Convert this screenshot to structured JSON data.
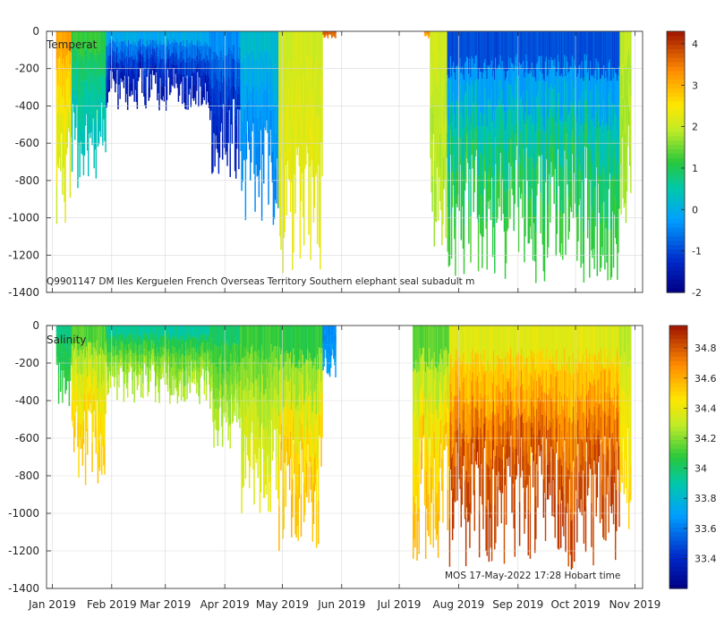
{
  "chart_data": [
    {
      "type": "heatmap",
      "name": "temperature",
      "panel_label": "Temperat",
      "annotation": "Q9901147 DM Iles Kerguelen French Overseas Territory Southern elephant seal subadult m",
      "xlabel": "",
      "ylabel": "",
      "ylim": [
        -1400,
        0
      ],
      "y_ticks": [
        0,
        -200,
        -400,
        -600,
        -800,
        -1000,
        -1200,
        -1400
      ],
      "y_tick_labels": [
        "0",
        "-200",
        "-400",
        "-600",
        "-800",
        "-1000",
        "-1200",
        "-1400"
      ],
      "x_range_days": [
        -3,
        308
      ],
      "x_ticks_days": [
        0,
        31,
        59,
        90,
        120,
        151,
        181,
        212,
        243,
        273,
        304
      ],
      "colorbar": {
        "range": [
          -2,
          4.3
        ],
        "ticks": [
          -2,
          -1,
          0,
          1,
          2,
          3,
          4
        ],
        "tick_labels": [
          "-2",
          "-1",
          "0",
          "1",
          "2",
          "3",
          "4"
        ]
      },
      "grid": true,
      "segments": [
        {
          "start_day": 2,
          "end_day": 10,
          "surface_value": 3.5,
          "deep_value": 2.0,
          "max_depth": 1100
        },
        {
          "start_day": 10,
          "end_day": 28,
          "surface_value": 1.5,
          "deep_value": 0.3,
          "max_depth": 850
        },
        {
          "start_day": 28,
          "end_day": 82,
          "surface_value": 0.5,
          "deep_value": -1.7,
          "max_depth": 430
        },
        {
          "start_day": 82,
          "end_day": 98,
          "surface_value": 0.0,
          "deep_value": -1.5,
          "max_depth": 800
        },
        {
          "start_day": 98,
          "end_day": 118,
          "surface_value": 0.5,
          "deep_value": -0.5,
          "max_depth": 1050
        },
        {
          "start_day": 118,
          "end_day": 141,
          "surface_value": 2.0,
          "deep_value": 2.3,
          "max_depth": 1300
        },
        {
          "start_day": 141,
          "end_day": 148,
          "surface_value": 4.0,
          "deep_value": 3.5,
          "max_depth": 40
        },
        {
          "start_day": 194,
          "end_day": 197,
          "surface_value": 3.5,
          "deep_value": 3.0,
          "max_depth": 40
        },
        {
          "start_day": 197,
          "end_day": 206,
          "surface_value": 2.2,
          "deep_value": 1.8,
          "max_depth": 1200
        },
        {
          "start_day": 206,
          "end_day": 296,
          "surface_value": -1.7,
          "deep_value": 1.4,
          "max_depth": 1350
        },
        {
          "start_day": 296,
          "end_day": 302,
          "surface_value": 2.0,
          "deep_value": 1.8,
          "max_depth": 1100
        }
      ]
    },
    {
      "type": "heatmap",
      "name": "salinity",
      "panel_label": "Salinity",
      "annotation": "MOS 17-May-2022 17:28 Hobart time",
      "xlabel": "",
      "ylabel": "",
      "ylim": [
        -1400,
        0
      ],
      "y_ticks": [
        0,
        -200,
        -400,
        -600,
        -800,
        -1000,
        -1200,
        -1400
      ],
      "y_tick_labels": [
        "0",
        "-200",
        "-400",
        "-600",
        "-800",
        "-1000",
        "-1200",
        "-1400"
      ],
      "x_range_days": [
        -3,
        308
      ],
      "x_ticks_days": [
        0,
        31,
        59,
        90,
        120,
        151,
        181,
        212,
        243,
        273,
        304
      ],
      "x_tick_labels": [
        "Jan 2019",
        "Feb 2019",
        "Mar 2019",
        "Apr 2019",
        "May 2019",
        "Jun 2019",
        "Jul 2019",
        "Aug 2019",
        "Sep 2019",
        "Oct 2019",
        "Nov 2019"
      ],
      "colorbar": {
        "range": [
          33.2,
          34.95
        ],
        "ticks": [
          33.4,
          33.6,
          33.8,
          34.0,
          34.2,
          34.4,
          34.6,
          34.8
        ],
        "tick_labels": [
          "33.4",
          "33.6",
          "33.8",
          "34",
          "34.2",
          "34.4",
          "34.6",
          "34.8"
        ]
      },
      "grid": true,
      "segments": [
        {
          "start_day": 2,
          "end_day": 10,
          "surface_value": 33.9,
          "deep_value": 34.1,
          "max_depth": 430
        },
        {
          "start_day": 10,
          "end_day": 28,
          "surface_value": 34.0,
          "deep_value": 34.55,
          "max_depth": 850
        },
        {
          "start_day": 28,
          "end_day": 82,
          "surface_value": 33.8,
          "deep_value": 34.3,
          "max_depth": 420
        },
        {
          "start_day": 82,
          "end_day": 98,
          "surface_value": 33.9,
          "deep_value": 34.3,
          "max_depth": 660
        },
        {
          "start_day": 98,
          "end_day": 118,
          "surface_value": 34.0,
          "deep_value": 34.4,
          "max_depth": 1050
        },
        {
          "start_day": 118,
          "end_day": 141,
          "surface_value": 33.9,
          "deep_value": 34.6,
          "max_depth": 1220
        },
        {
          "start_day": 141,
          "end_day": 148,
          "surface_value": 33.6,
          "deep_value": 33.7,
          "max_depth": 280
        },
        {
          "start_day": 188,
          "end_day": 207,
          "surface_value": 34.0,
          "deep_value": 34.6,
          "max_depth": 1280
        },
        {
          "start_day": 207,
          "end_day": 296,
          "surface_value": 34.2,
          "deep_value": 34.9,
          "max_depth": 1300
        },
        {
          "start_day": 296,
          "end_day": 302,
          "surface_value": 34.2,
          "deep_value": 34.5,
          "max_depth": 1100
        }
      ]
    }
  ]
}
